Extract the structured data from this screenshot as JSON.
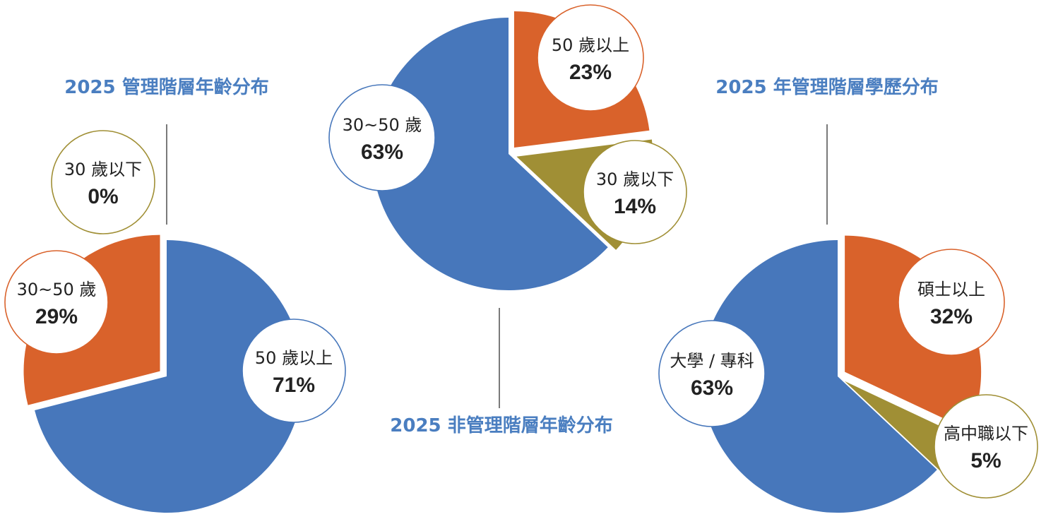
{
  "colors": {
    "blue": "#4777bb",
    "orange": "#d9622b",
    "olive": "#a08f35",
    "title": "#4a7ec0",
    "text": "#222222"
  },
  "chart_data": [
    {
      "type": "pie",
      "title": "2025 管理階層年齡分布",
      "slices": [
        {
          "label": "50 歲以上",
          "value": 71,
          "value_label": "71%",
          "color": "#4777bb"
        },
        {
          "label": "30~50 歲",
          "value": 29,
          "value_label": "29%",
          "color": "#d9622b"
        },
        {
          "label": "30 歲以下",
          "value": 0,
          "value_label": "0%",
          "color": "#a08f35"
        }
      ]
    },
    {
      "type": "pie",
      "title": "2025 非管理階層年齡分布",
      "slices": [
        {
          "label": "50 歲以上",
          "value": 23,
          "value_label": "23%",
          "color": "#d9622b"
        },
        {
          "label": "30 歲以下",
          "value": 14,
          "value_label": "14%",
          "color": "#a08f35"
        },
        {
          "label": "30~50 歲",
          "value": 63,
          "value_label": "63%",
          "color": "#4777bb"
        }
      ]
    },
    {
      "type": "pie",
      "title": "2025 年管理階層學歷分布",
      "slices": [
        {
          "label": "碩士以上",
          "value": 32,
          "value_label": "32%",
          "color": "#d9622b"
        },
        {
          "label": "高中職以下",
          "value": 5,
          "value_label": "5%",
          "color": "#a08f35"
        },
        {
          "label": "大學 / 專科",
          "value": 63,
          "value_label": "63%",
          "color": "#4777bb"
        }
      ]
    }
  ]
}
